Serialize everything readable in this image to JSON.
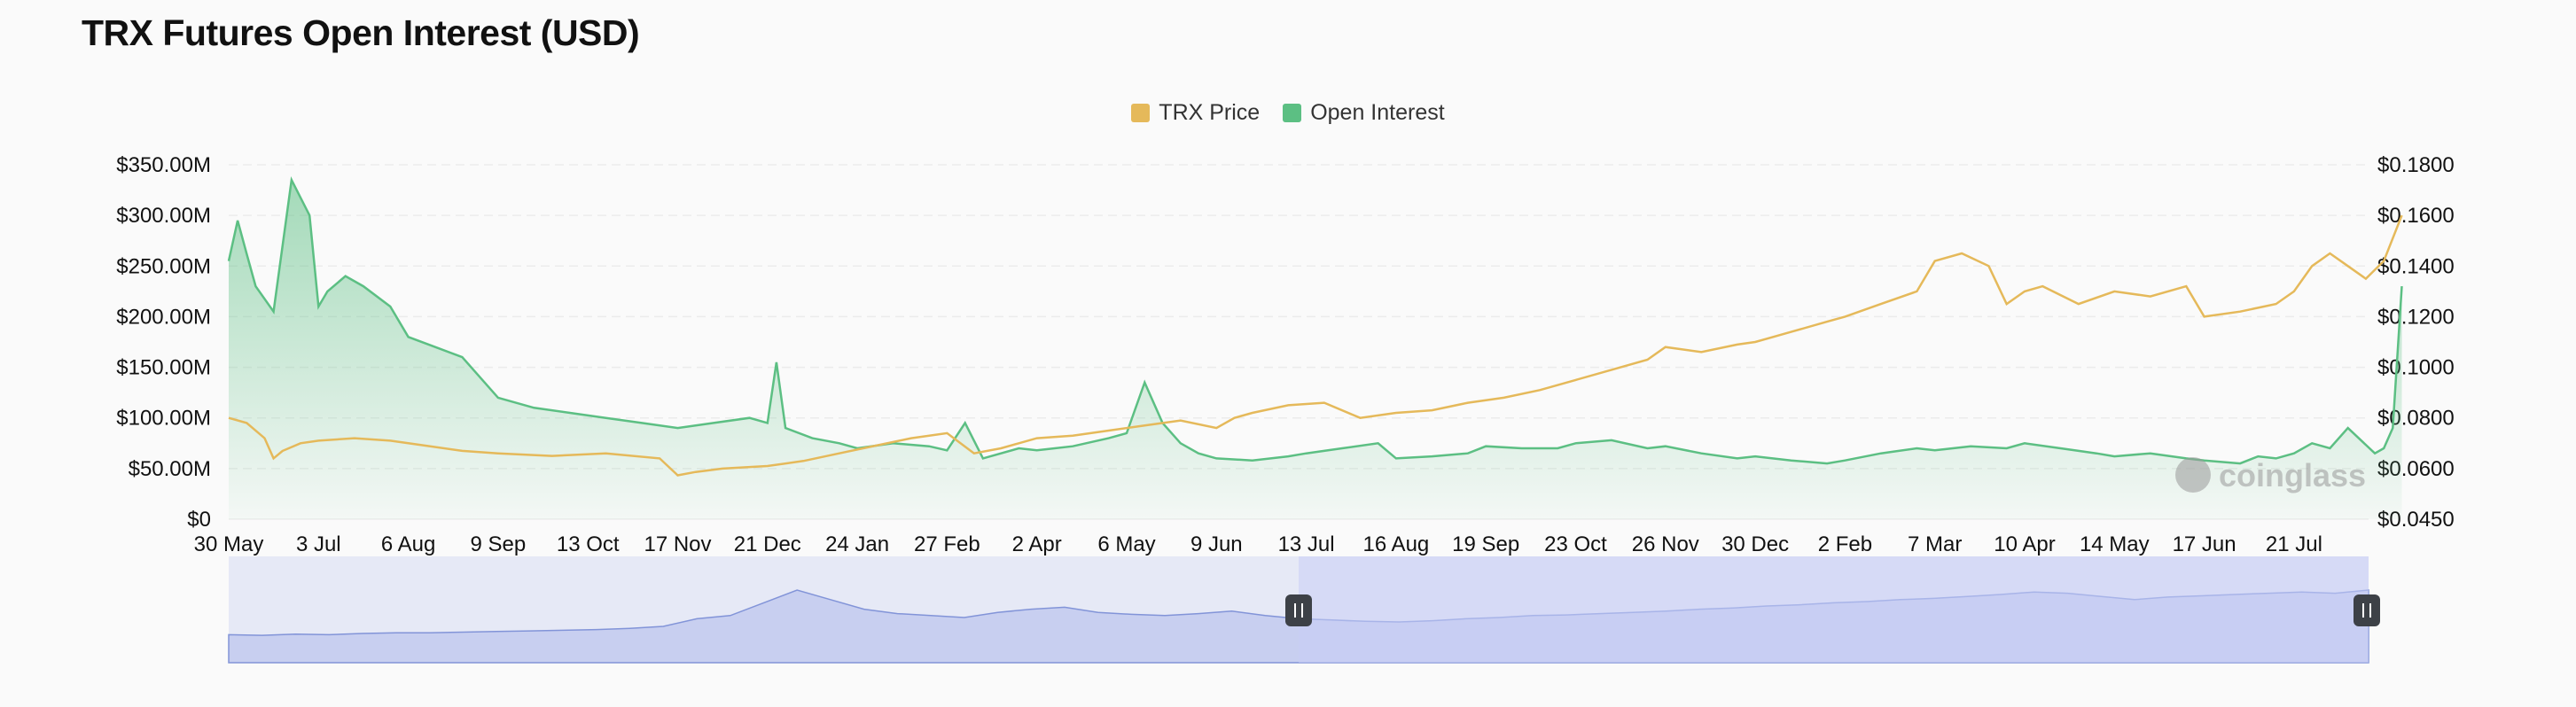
{
  "title": "TRX Futures Open Interest (USD)",
  "watermark": "coinglass",
  "colors": {
    "price": "#e5b95a",
    "oi": "#5cbf83",
    "navigator": "#8294d8"
  },
  "chart_data": {
    "type": "line",
    "title": "TRX Futures Open Interest (USD)",
    "legend": {
      "placement": "top-center",
      "entries": [
        "TRX Price",
        "Open Interest"
      ]
    },
    "x_tick_labels": [
      "30 May",
      "3 Jul",
      "6 Aug",
      "9 Sep",
      "13 Oct",
      "17 Nov",
      "21 Dec",
      "24 Jan",
      "27 Feb",
      "2 Apr",
      "6 May",
      "9 Jun",
      "13 Jul",
      "16 Aug",
      "19 Sep",
      "23 Oct",
      "26 Nov",
      "30 Dec",
      "2 Feb",
      "7 Mar",
      "10 Apr",
      "14 May",
      "17 Jun",
      "21 Jul"
    ],
    "y_left": {
      "ticks": [
        "$0",
        "$50.00M",
        "$100.00M",
        "$150.00M",
        "$200.00M",
        "$250.00M",
        "$300.00M",
        "$350.00M"
      ],
      "range": [
        0,
        350000000
      ]
    },
    "y_right": {
      "ticks": [
        "$0.0450",
        "$0.0600",
        "$0.0800",
        "$0.1000",
        "$0.1200",
        "$0.1400",
        "$0.1600",
        "$0.1800"
      ],
      "values": [
        0.045,
        0.06,
        0.08,
        0.1,
        0.12,
        0.14,
        0.16,
        0.18
      ]
    },
    "grid": true,
    "series": [
      {
        "name": "Open Interest",
        "axis": "left",
        "type": "area",
        "x_index": [
          0,
          0.1,
          0.2,
          0.3,
          0.5,
          0.7,
          0.9,
          1.0,
          1.1,
          1.3,
          1.5,
          1.8,
          2.0,
          2.3,
          2.6,
          3.0,
          3.4,
          3.8,
          4.2,
          4.6,
          5.0,
          5.4,
          5.8,
          6.0,
          6.1,
          6.2,
          6.5,
          6.8,
          7.0,
          7.4,
          7.8,
          8.0,
          8.2,
          8.4,
          8.8,
          9.0,
          9.4,
          9.8,
          10.0,
          10.2,
          10.4,
          10.6,
          10.8,
          11.0,
          11.4,
          11.8,
          12.0,
          12.4,
          12.8,
          13.0,
          13.4,
          13.8,
          14.0,
          14.4,
          14.8,
          15.0,
          15.4,
          15.8,
          16.0,
          16.4,
          16.8,
          17.0,
          17.4,
          17.8,
          18.0,
          18.4,
          18.8,
          19.0,
          19.4,
          19.8,
          20.0,
          20.4,
          20.8,
          21.0,
          21.4,
          21.8,
          22.0,
          22.4,
          22.6,
          22.8,
          23.0,
          23.2,
          23.4,
          23.6,
          23.9,
          24.0,
          24.1,
          24.2
        ],
        "values": [
          255,
          295,
          262,
          230,
          205,
          335,
          300,
          210,
          225,
          240,
          230,
          210,
          180,
          170,
          160,
          120,
          110,
          105,
          100,
          95,
          90,
          95,
          100,
          95,
          155,
          90,
          80,
          75,
          70,
          75,
          72,
          68,
          95,
          60,
          70,
          68,
          72,
          80,
          85,
          135,
          95,
          75,
          65,
          60,
          58,
          62,
          65,
          70,
          75,
          60,
          62,
          65,
          72,
          70,
          70,
          75,
          78,
          70,
          72,
          65,
          60,
          62,
          58,
          55,
          58,
          65,
          70,
          68,
          72,
          70,
          75,
          70,
          65,
          62,
          65,
          60,
          58,
          55,
          62,
          60,
          65,
          75,
          70,
          90,
          65,
          70,
          90,
          230
        ]
      },
      {
        "name": "TRX Price",
        "axis": "right",
        "type": "line",
        "x_index": [
          0,
          0.2,
          0.4,
          0.5,
          0.6,
          0.8,
          1.0,
          1.4,
          1.8,
          2.2,
          2.6,
          3.0,
          3.6,
          4.2,
          4.8,
          5.0,
          5.2,
          5.5,
          6.0,
          6.4,
          6.8,
          7.2,
          7.6,
          8.0,
          8.3,
          8.6,
          8.8,
          9.0,
          9.4,
          9.8,
          10.2,
          10.6,
          11.0,
          11.2,
          11.4,
          11.8,
          12.2,
          12.6,
          13.0,
          13.4,
          13.8,
          14.2,
          14.6,
          15.0,
          15.4,
          15.8,
          16.0,
          16.4,
          16.8,
          17.0,
          17.4,
          17.8,
          18.0,
          18.4,
          18.8,
          19.0,
          19.3,
          19.6,
          19.8,
          20.0,
          20.2,
          20.6,
          21.0,
          21.4,
          21.8,
          22.0,
          22.4,
          22.8,
          23.0,
          23.2,
          23.4,
          23.6,
          23.8,
          24.0,
          24.2
        ],
        "values": [
          0.08,
          0.078,
          0.072,
          0.064,
          0.067,
          0.07,
          0.071,
          0.072,
          0.071,
          0.069,
          0.067,
          0.066,
          0.065,
          0.066,
          0.064,
          0.058,
          0.059,
          0.06,
          0.061,
          0.063,
          0.066,
          0.069,
          0.072,
          0.074,
          0.066,
          0.068,
          0.07,
          0.072,
          0.073,
          0.075,
          0.077,
          0.079,
          0.076,
          0.08,
          0.082,
          0.085,
          0.086,
          0.08,
          0.082,
          0.083,
          0.086,
          0.088,
          0.091,
          0.095,
          0.099,
          0.103,
          0.108,
          0.106,
          0.109,
          0.11,
          0.114,
          0.118,
          0.12,
          0.125,
          0.13,
          0.142,
          0.145,
          0.14,
          0.125,
          0.13,
          0.132,
          0.125,
          0.13,
          0.128,
          0.132,
          0.12,
          0.122,
          0.125,
          0.13,
          0.14,
          0.145,
          0.14,
          0.135,
          0.142,
          0.16
        ]
      }
    ],
    "navigator": {
      "values": [
        0.05,
        0.04,
        0.06,
        0.05,
        0.07,
        0.08,
        0.08,
        0.09,
        0.1,
        0.11,
        0.12,
        0.13,
        0.15,
        0.18,
        0.3,
        0.35,
        0.55,
        0.75,
        0.6,
        0.45,
        0.38,
        0.35,
        0.32,
        0.4,
        0.45,
        0.48,
        0.4,
        0.37,
        0.35,
        0.38,
        0.42,
        0.35,
        0.3,
        0.28,
        0.26,
        0.25,
        0.27,
        0.3,
        0.32,
        0.35,
        0.36,
        0.38,
        0.4,
        0.42,
        0.45,
        0.47,
        0.5,
        0.52,
        0.55,
        0.57,
        0.6,
        0.62,
        0.65,
        0.68,
        0.72,
        0.7,
        0.65,
        0.6,
        0.64,
        0.66,
        0.68,
        0.7,
        0.72,
        0.7,
        0.75
      ],
      "selection": [
        0.5,
        1.0
      ]
    }
  }
}
